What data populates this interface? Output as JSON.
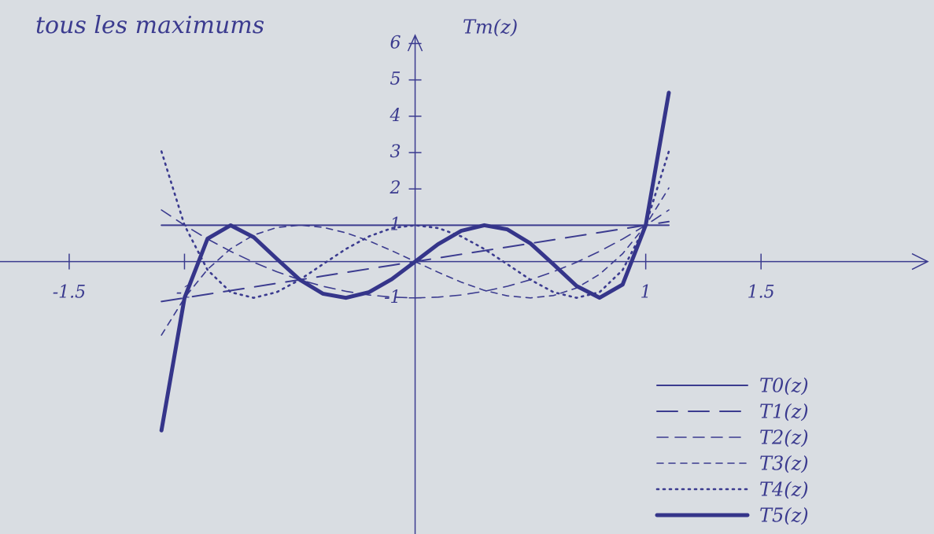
{
  "chart_data": {
    "type": "line",
    "title": "tous les maximums",
    "y_label": "Tm(z)",
    "x": [
      -1.1,
      -1.0,
      -0.9,
      -0.8,
      -0.7,
      -0.6,
      -0.5,
      -0.4,
      -0.3,
      -0.2,
      -0.1,
      0,
      0.1,
      0.2,
      0.3,
      0.4,
      0.5,
      0.6,
      0.7,
      0.8,
      0.9,
      1.0,
      1.1
    ],
    "series": [
      {
        "name": "T0(z)",
        "color": "#3b3b8f",
        "dash": "solid",
        "width": 2,
        "values": [
          1,
          1,
          1,
          1,
          1,
          1,
          1,
          1,
          1,
          1,
          1,
          1,
          1,
          1,
          1,
          1,
          1,
          1,
          1,
          1,
          1,
          1,
          1
        ]
      },
      {
        "name": "T1(z)",
        "color": "#3b3b8f",
        "dash": "long",
        "width": 2,
        "values": [
          -1.1,
          -1.0,
          -0.9,
          -0.8,
          -0.7,
          -0.6,
          -0.5,
          -0.4,
          -0.3,
          -0.2,
          -0.1,
          0,
          0.1,
          0.2,
          0.3,
          0.4,
          0.5,
          0.6,
          0.7,
          0.8,
          0.9,
          1.0,
          1.1
        ]
      },
      {
        "name": "T2(z)",
        "color": "#3b3b8f",
        "dash": "medium",
        "width": 1.6,
        "values": [
          1.42,
          1,
          0.62,
          0.28,
          -0.02,
          -0.28,
          -0.5,
          -0.68,
          -0.82,
          -0.92,
          -0.98,
          -1,
          -0.98,
          -0.92,
          -0.82,
          -0.68,
          -0.5,
          -0.28,
          -0.02,
          0.28,
          0.62,
          1,
          1.42
        ]
      },
      {
        "name": "T3(z)",
        "color": "#3b3b8f",
        "dash": "short",
        "width": 1.6,
        "values": [
          -2.024,
          -1,
          -0.216,
          0.352,
          0.728,
          0.936,
          1,
          0.944,
          0.792,
          0.568,
          0.296,
          0,
          -0.296,
          -0.568,
          -0.792,
          -0.944,
          -1,
          -0.936,
          -0.728,
          -0.352,
          0.216,
          1,
          2.024
        ]
      },
      {
        "name": "T4(z)",
        "color": "#3b3b8f",
        "dash": "dotted",
        "width": 2.6,
        "values": [
          3.0328,
          1,
          -0.2312,
          -0.8432,
          -0.9992,
          -0.8432,
          -0.5,
          -0.0752,
          0.3448,
          0.6928,
          0.9208,
          1,
          0.9208,
          0.6928,
          0.3448,
          -0.0752,
          -0.5,
          -0.8432,
          -0.9992,
          -0.8432,
          -0.2312,
          1,
          3.0328
        ]
      },
      {
        "name": "T5(z)",
        "color": "#35358a",
        "dash": "solid",
        "width": 5,
        "values": [
          -4.64816,
          -1,
          0.63216,
          0.99712,
          0.67088,
          0.07584,
          -0.5,
          -0.88384,
          -0.99888,
          -0.84512,
          -0.48016,
          0,
          0.48016,
          0.84512,
          0.99888,
          0.88384,
          0.5,
          -0.07584,
          -0.67088,
          -0.99712,
          -0.63216,
          1,
          4.64816
        ]
      }
    ],
    "xlim": [
      -1.8,
      2.25
    ],
    "ylim": [
      -7.5,
      7.2
    ],
    "xticks": [
      -1.5,
      -1,
      1,
      1.5
    ],
    "yticks": [
      -1,
      1,
      2,
      3,
      4,
      5,
      6
    ],
    "legend": "bottom-right"
  }
}
